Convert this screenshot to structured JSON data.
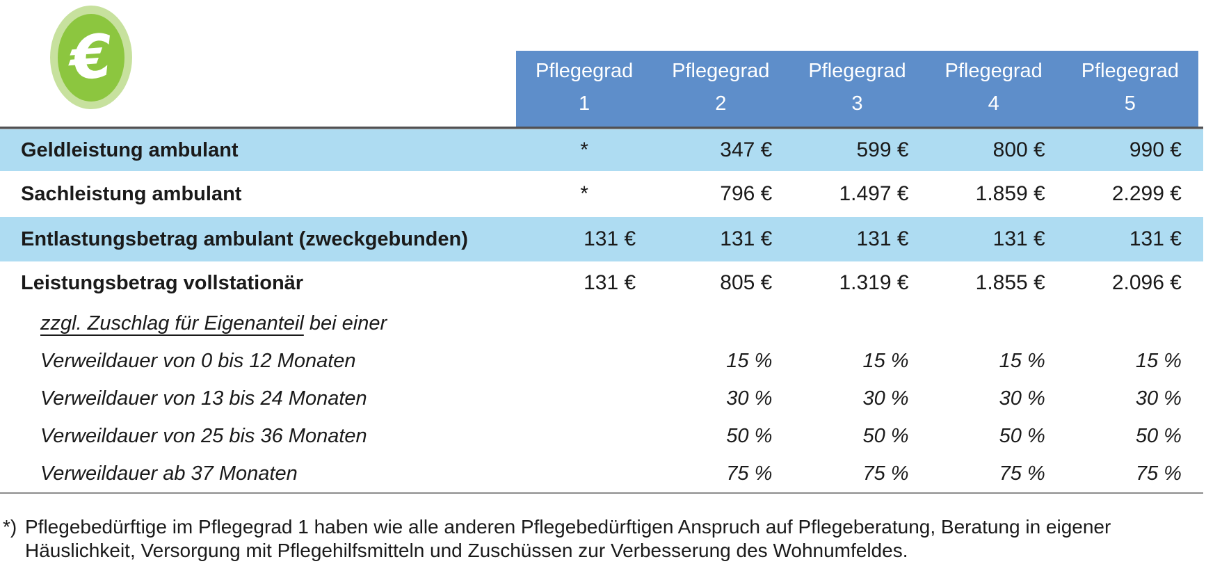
{
  "colors": {
    "header-blue": "#5E8ECA",
    "row-blue": "#AEDCF2",
    "text": "#1A1A1A",
    "rule-dark": "#515153",
    "rule-gray": "#8C8C8C",
    "icon-outer": "#C7E19E",
    "icon-inner": "#8CC63F",
    "header-text": "#FFFFFF"
  },
  "icon": {
    "symbol": "€"
  },
  "table": {
    "header": {
      "columns": [
        {
          "title": "Pflegegrad",
          "number": "1"
        },
        {
          "title": "Pflegegrad",
          "number": "2"
        },
        {
          "title": "Pflegegrad",
          "number": "3"
        },
        {
          "title": "Pflegegrad",
          "number": "4"
        },
        {
          "title": "Pflegegrad",
          "number": "5"
        }
      ]
    },
    "rows": [
      {
        "label": "Geldleistung ambulant",
        "values": [
          "*",
          "347 €",
          "599 €",
          "800 €",
          "990 €"
        ]
      },
      {
        "label": "Sachleistung ambulant",
        "values": [
          "*",
          "796 €",
          "1.497 €",
          "1.859 €",
          "2.299 €"
        ]
      },
      {
        "label": "Entlastungsbetrag ambulant (zweckgebunden)",
        "values": [
          "131 €",
          "131 €",
          "131 €",
          "131 €",
          "131 €"
        ]
      },
      {
        "label": "Leistungsbetrag vollstationär",
        "values": [
          "131 €",
          "805 €",
          "1.319 €",
          "1.855 €",
          "2.096 €"
        ]
      },
      {
        "label_underlined": "zzgl. Zuschlag für Eigenanteil",
        "label_rest": " bei einer",
        "values": [
          "",
          "",
          "",
          "",
          ""
        ]
      },
      {
        "label": "Verweildauer von 0 bis 12 Monaten",
        "values": [
          "",
          "15 %",
          "15 %",
          "15 %",
          "15 %"
        ]
      },
      {
        "label": "Verweildauer von 13 bis 24 Monaten",
        "values": [
          "",
          "30 %",
          "30 %",
          "30 %",
          "30 %"
        ]
      },
      {
        "label": "Verweildauer von 25 bis 36 Monaten",
        "values": [
          "",
          "50 %",
          "50 %",
          "50 %",
          "50 %"
        ]
      },
      {
        "label": "Verweildauer ab 37 Monaten",
        "values": [
          "",
          "75 %",
          "75 %",
          "75 %",
          "75 %"
        ]
      }
    ]
  },
  "footnote": {
    "marker": "*)",
    "text": "Pflegebedürftige im Pflegegrad 1 haben wie alle anderen Pflegebedürftigen Anspruch auf Pflegeberatung, Beratung in eigener Häuslichkeit, Versorgung mit Pflegehilfsmitteln und Zuschüssen zur Verbesserung des Wohnumfeldes."
  }
}
